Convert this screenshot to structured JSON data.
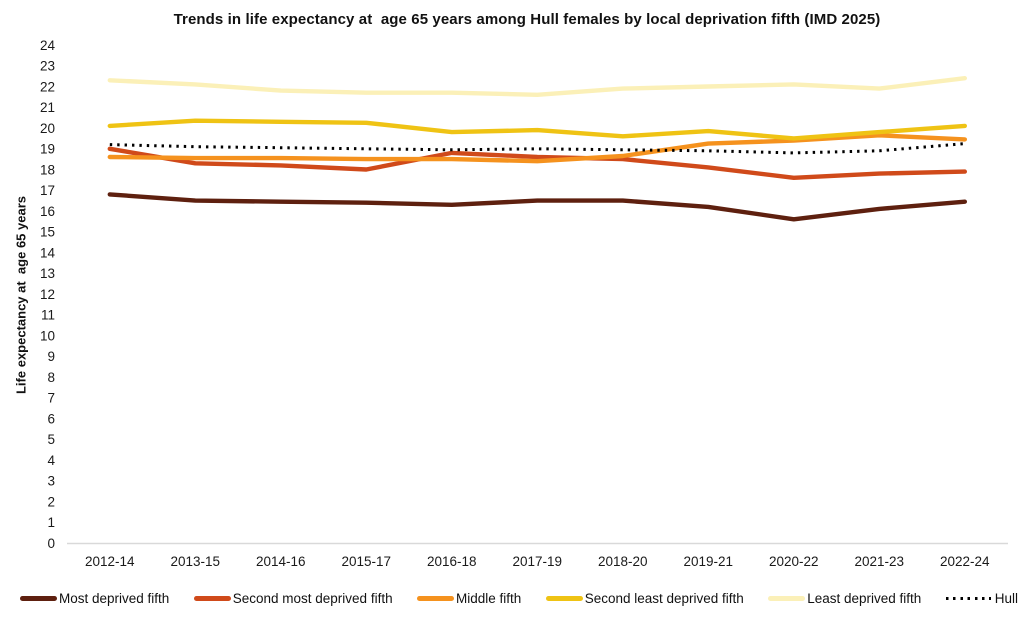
{
  "title": "Trends in life expectancy at  age 65 years among Hull females by local deprivation fifth (IMD 2025)",
  "chart_data": {
    "type": "line",
    "title": "Trends in life expectancy at  age 65 years among Hull females by local deprivation fifth (IMD 2025)",
    "xlabel": "",
    "ylabel": "Life expectancy at  age 65 years",
    "ylim": [
      0,
      24
    ],
    "ytick_step": 1,
    "grid": false,
    "legend_position": "bottom",
    "axis_line_color": "#d9d9d9",
    "categories": [
      "2012-14",
      "2013-15",
      "2014-16",
      "2015-17",
      "2016-18",
      "2017-19",
      "2018-20",
      "2019-21",
      "2020-22",
      "2021-23",
      "2022-24"
    ],
    "series": [
      {
        "name": "Most deprived fifth",
        "color": "#5e200f",
        "style": "solid",
        "values": [
          16.8,
          16.5,
          16.45,
          16.4,
          16.3,
          16.5,
          16.5,
          16.2,
          15.6,
          16.1,
          16.45
        ]
      },
      {
        "name": "Second most deprived fifth",
        "color": "#d04a1a",
        "style": "solid",
        "values": [
          19.0,
          18.3,
          18.2,
          18.0,
          18.8,
          18.6,
          18.5,
          18.1,
          17.6,
          17.8,
          17.9
        ]
      },
      {
        "name": "Middle fifth",
        "color": "#f5921e",
        "style": "solid",
        "values": [
          18.6,
          18.55,
          18.55,
          18.5,
          18.5,
          18.4,
          18.65,
          19.25,
          19.4,
          19.65,
          19.45
        ]
      },
      {
        "name": "Second least deprived fifth",
        "color": "#efc314",
        "style": "solid",
        "values": [
          20.1,
          20.35,
          20.3,
          20.25,
          19.8,
          19.9,
          19.6,
          19.85,
          19.5,
          19.8,
          20.1
        ]
      },
      {
        "name": "Least deprived fifth",
        "color": "#fbf0b8",
        "style": "solid",
        "values": [
          22.3,
          22.1,
          21.8,
          21.7,
          21.7,
          21.6,
          21.9,
          22.0,
          22.1,
          21.9,
          22.4
        ]
      },
      {
        "name": "Hull",
        "color": "#000000",
        "style": "dotted",
        "values": [
          19.2,
          19.1,
          19.05,
          19.0,
          18.95,
          19.0,
          18.95,
          18.9,
          18.8,
          18.9,
          19.25
        ]
      }
    ]
  }
}
